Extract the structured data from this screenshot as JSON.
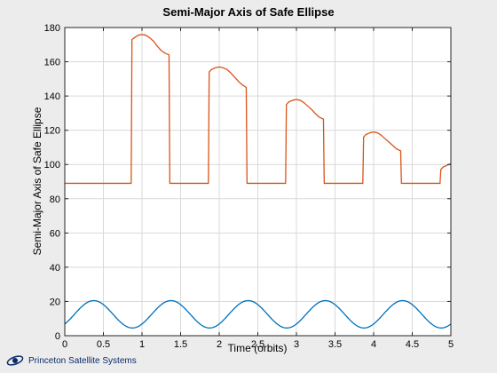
{
  "chart_data": {
    "type": "line",
    "title": "Semi-Major Axis of Safe Ellipse",
    "xlabel": "Time (orbits)",
    "ylabel": "Semi-Major Axis of Safe Ellipse",
    "xlim": [
      0,
      5
    ],
    "ylim": [
      0,
      180
    ],
    "xticks": [
      "0",
      "0.5",
      "1",
      "1.5",
      "2",
      "2.5",
      "3",
      "3.5",
      "4",
      "4.5",
      "5"
    ],
    "yticks": [
      "0",
      "20",
      "40",
      "60",
      "80",
      "100",
      "120",
      "140",
      "160",
      "180"
    ],
    "grid": true,
    "series": [
      {
        "color": "#d95319",
        "x": [
          0,
          0.86,
          0.87,
          0.9,
          0.95,
          1.0,
          1.05,
          1.1,
          1.15,
          1.2,
          1.25,
          1.3,
          1.35,
          1.36,
          1.86,
          1.87,
          1.9,
          1.95,
          2.0,
          2.05,
          2.1,
          2.15,
          2.2,
          2.25,
          2.3,
          2.35,
          2.36,
          2.86,
          2.87,
          2.9,
          2.95,
          3.0,
          3.05,
          3.1,
          3.15,
          3.2,
          3.25,
          3.3,
          3.35,
          3.36,
          3.86,
          3.87,
          3.9,
          3.95,
          4.0,
          4.05,
          4.1,
          4.15,
          4.2,
          4.25,
          4.3,
          4.35,
          4.36,
          4.86,
          4.87,
          4.9,
          4.95,
          5.0
        ],
        "y": [
          89,
          89,
          173,
          174,
          175.5,
          176,
          175.5,
          174,
          172,
          169,
          166.5,
          165,
          164,
          89,
          89,
          154,
          155.5,
          156.5,
          157,
          156.5,
          155.5,
          153.5,
          151,
          148.5,
          146.5,
          145,
          89,
          89,
          135,
          136.5,
          137.5,
          138,
          137.5,
          136,
          134,
          132,
          129.5,
          127.5,
          126.5,
          89,
          89,
          116,
          117.5,
          118.5,
          119,
          118.5,
          117,
          115,
          113,
          111,
          109,
          108,
          89,
          89,
          97,
          98.5,
          99.5,
          100.5
        ]
      },
      {
        "color": "#0072bd",
        "function": "12.5 - 8 * cos(2*pi*(x + 0.125))",
        "x_start": 0,
        "x_end": 5,
        "min": 4.5,
        "max": 20.5,
        "period": 1
      }
    ]
  },
  "logo": {
    "text": "Princeton Satellite Systems"
  },
  "colors": {
    "background": "#ececec",
    "axes": "#ffffff",
    "logo_blue": "#0a2a6b"
  }
}
